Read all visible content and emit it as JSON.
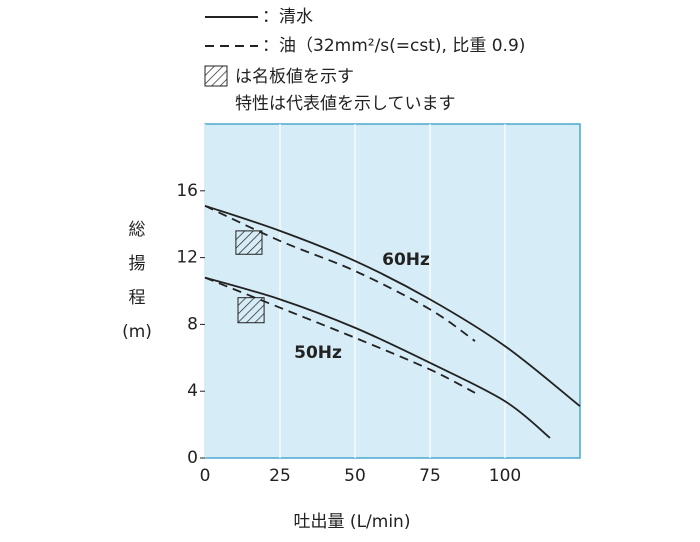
{
  "chart_data": {
    "type": "line",
    "legend": [
      {
        "label": "：清水",
        "line": "solid"
      },
      {
        "label": "：油（32mm²/s(=cst), 比重 0.9)",
        "line": "dashed"
      }
    ],
    "notes": [
      "は名板値を示す",
      "特性は代表値を示しています"
    ],
    "ylabel_lines": [
      "総",
      "揚",
      "程",
      "(m)"
    ],
    "xlabel": "吐出量 (L/min)",
    "xlim": [
      0,
      125
    ],
    "xticks": [
      0,
      25,
      50,
      75,
      100
    ],
    "ylim": [
      0,
      20
    ],
    "yticks": [
      0,
      4,
      8,
      12,
      16
    ],
    "grid": true,
    "background": "#d6ecf6",
    "frame_color": "#4aa8d0",
    "series": [
      {
        "name": "60Hz",
        "color": "#222222",
        "water": {
          "x": [
            0,
            25,
            50,
            75,
            100,
            125
          ],
          "values": [
            15.1,
            13.6,
            11.8,
            9.5,
            6.7,
            3.1
          ]
        },
        "oil": {
          "x": [
            0,
            25,
            50,
            75,
            90
          ],
          "values": [
            15.1,
            13.0,
            11.2,
            8.9,
            7.0
          ]
        }
      },
      {
        "name": "50Hz",
        "color": "#222222",
        "water": {
          "x": [
            0,
            25,
            50,
            75,
            100,
            115
          ],
          "values": [
            10.8,
            9.5,
            7.8,
            5.7,
            3.4,
            1.2
          ]
        },
        "oil": {
          "x": [
            0,
            25,
            50,
            75,
            90
          ],
          "values": [
            10.8,
            9.0,
            7.2,
            5.3,
            3.9
          ]
        }
      }
    ],
    "rated": [
      {
        "x": [
          10.3,
          19
        ],
        "y": [
          12.2,
          13.6
        ]
      },
      {
        "x": [
          11,
          19.7
        ],
        "y": [
          8.1,
          9.6
        ]
      }
    ]
  }
}
